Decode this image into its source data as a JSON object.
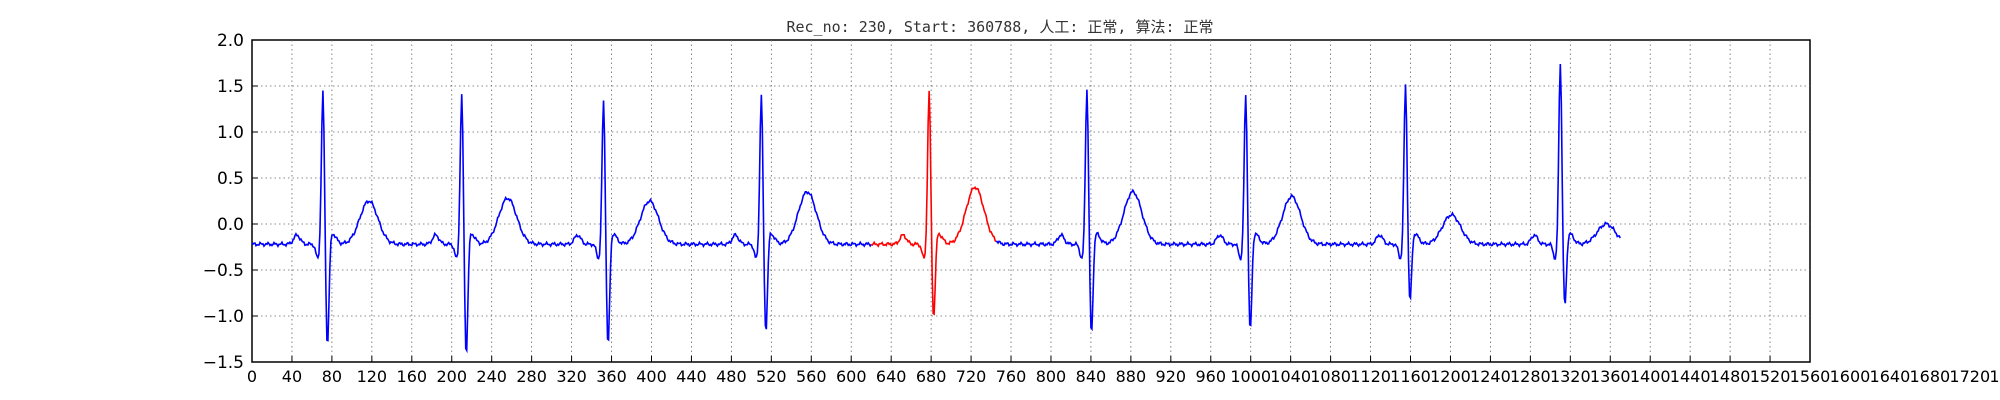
{
  "chart_data": {
    "type": "line",
    "title": "Rec_no: 230, Start: 360788, 人工: 正常, 算法: 正常",
    "xlabel": "",
    "ylabel": "",
    "xlim": [
      0,
      1560
    ],
    "ylim": [
      -1.5,
      2.0
    ],
    "grid": true,
    "x_ticks": [
      0,
      40,
      80,
      120,
      160,
      200,
      240,
      280,
      320,
      360,
      400,
      440,
      480,
      520,
      560,
      600,
      640,
      680,
      720,
      760,
      800,
      840,
      880,
      920,
      960,
      1000,
      1040,
      1080,
      1120,
      1160,
      1200,
      1240,
      1280,
      1320,
      1360,
      1400,
      1440,
      1480,
      1520,
      1560,
      1600,
      1640,
      1680,
      1720,
      1760,
      1800,
      1840,
      1880,
      1920,
      1960,
      2000,
      2040,
      2080,
      2120,
      2160,
      2200,
      2240,
      2280,
      2320,
      2360,
      2400,
      2440,
      2480,
      2520,
      2560,
      2600,
      2640,
      2680,
      2720,
      2760,
      2800,
      2840,
      2880,
      2920,
      2960,
      3000,
      3040,
      3080,
      3120,
      3160,
      3200,
      3240,
      3280,
      3320,
      3360,
      3400,
      3440,
      3480,
      3520,
      3560,
      3600
    ],
    "x_tick_labels": [
      "0",
      "40",
      "80",
      "120",
      "160",
      "200",
      "240",
      "280",
      "320",
      "360",
      "400",
      "440",
      "480",
      "520",
      "560",
      "600",
      "640",
      "680",
      "720",
      "760",
      "800",
      "840",
      "880",
      "920",
      "960",
      "1000",
      "1040",
      "1080",
      "1120",
      "1160",
      "1200",
      "1240",
      "1280",
      "1320",
      "1360",
      "1400",
      "1440",
      "1480",
      "1520",
      "1560",
      "1600",
      "1640",
      "1680",
      "1720",
      "1760",
      "1800",
      "1840",
      "1880",
      "1920",
      "1960",
      "2000",
      "2040",
      "2080",
      "2120",
      "2160",
      "2200",
      "2240",
      "2280",
      "2320",
      "2360",
      "2400",
      "2440",
      "2480",
      "2520",
      "2560",
      "2600",
      "2640",
      "2680",
      "2720",
      "2760",
      "2800",
      "2840",
      "2880",
      "2920",
      "2960",
      "3000",
      "3040",
      "3080",
      "3120",
      "3160",
      "3200",
      "3240",
      "3280",
      "3320",
      "3360",
      "3400",
      "3440",
      "3480",
      "3520",
      "3560",
      "3600"
    ],
    "y_ticks": [
      -1.5,
      -1.0,
      -0.5,
      0.0,
      0.5,
      1.0,
      1.5,
      2.0
    ],
    "y_tick_labels": [
      "−1.5",
      "−1.0",
      "−0.5",
      "0.0",
      "0.5",
      "1.0",
      "1.5",
      "2.0"
    ],
    "beats": [
      {
        "peak": 71,
        "amp": 1.45,
        "neg": -1.4,
        "t": 0.25
      },
      {
        "peak": 210,
        "amp": 1.42,
        "neg": -1.5,
        "t": 0.28
      },
      {
        "peak": 352,
        "amp": 1.35,
        "neg": -1.4,
        "t": 0.25
      },
      {
        "peak": 510,
        "amp": 1.42,
        "neg": -1.25,
        "t": 0.35
      },
      {
        "peak": 678,
        "amp": 1.45,
        "neg": -1.1,
        "t": 0.4
      },
      {
        "peak": 836,
        "amp": 1.48,
        "neg": -1.28,
        "t": 0.35
      },
      {
        "peak": 995,
        "amp": 1.42,
        "neg": -1.25,
        "t": 0.3
      },
      {
        "peak": 1155,
        "amp": 1.52,
        "neg": -0.92,
        "t": 0.1
      },
      {
        "peak": 1310,
        "amp": 1.77,
        "neg": -0.98,
        "t": 0.0
      }
    ],
    "baseline": -0.22,
    "x_end": 1370,
    "series": [
      {
        "color": "#0000ff",
        "x_range": [
          0,
          620
        ]
      },
      {
        "color": "#ff0000",
        "x_range": [
          620,
          745
        ]
      },
      {
        "color": "#0000ff",
        "x_range": [
          745,
          1370
        ]
      }
    ]
  }
}
